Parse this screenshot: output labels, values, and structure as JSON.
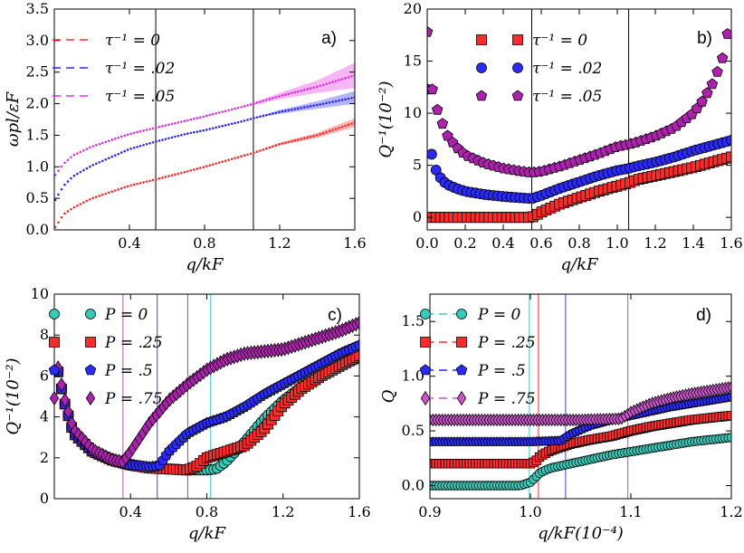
{
  "chart_data": [
    {
      "panel": "a)",
      "type": "line",
      "xlabel": "q/kF",
      "ylabel": "ωpl/εF",
      "xlim": [
        0.0,
        1.6
      ],
      "ylim": [
        0.0,
        3.5
      ],
      "xticks": [
        0.4,
        0.8,
        1.2,
        1.6
      ],
      "xtick_labels": [
        "0.4",
        "0.8",
        "1.2",
        "1.6"
      ],
      "yticks": [
        0.0,
        0.5,
        1.0,
        1.5,
        2.0,
        2.5,
        3.0,
        3.5
      ],
      "ytick_labels": [
        "0.0",
        "0.5",
        "1.0",
        "1.5",
        "2.0",
        "2.5",
        "3.0",
        "3.5"
      ],
      "vlines": [
        0.54,
        1.06
      ],
      "legend_position": "top-left",
      "series": [
        {
          "name": "τ⁻¹ = 0",
          "color": "#ff2a2a",
          "x": [
            0.0,
            0.05,
            0.1,
            0.2,
            0.3,
            0.4,
            0.54,
            0.7,
            0.8,
            1.0,
            1.06,
            1.2,
            1.4,
            1.6
          ],
          "y": [
            0.02,
            0.25,
            0.35,
            0.5,
            0.6,
            0.7,
            0.8,
            0.92,
            1.0,
            1.17,
            1.22,
            1.36,
            1.5,
            1.7
          ],
          "band_halfwidth": [
            0,
            0,
            0,
            0,
            0,
            0,
            0,
            0,
            0,
            0,
            0,
            0.02,
            0.04,
            0.07
          ]
        },
        {
          "name": "τ⁻¹ = .02",
          "color": "#2a2aff",
          "x": [
            0.0,
            0.05,
            0.1,
            0.2,
            0.3,
            0.4,
            0.54,
            0.7,
            0.8,
            1.0,
            1.06,
            1.2,
            1.4,
            1.6
          ],
          "y": [
            0.45,
            0.7,
            0.85,
            1.02,
            1.15,
            1.28,
            1.4,
            1.52,
            1.58,
            1.72,
            1.77,
            1.87,
            1.98,
            2.1
          ],
          "band_halfwidth": [
            0,
            0,
            0,
            0,
            0,
            0,
            0,
            0,
            0,
            0,
            0,
            0.03,
            0.06,
            0.1
          ]
        },
        {
          "name": "τ⁻¹ = .05",
          "color": "#e030e0",
          "x": [
            0.0,
            0.05,
            0.1,
            0.2,
            0.3,
            0.4,
            0.54,
            0.7,
            0.8,
            1.0,
            1.06,
            1.2,
            1.4,
            1.6
          ],
          "y": [
            0.85,
            1.05,
            1.18,
            1.32,
            1.42,
            1.52,
            1.62,
            1.73,
            1.8,
            1.95,
            2.0,
            2.12,
            2.27,
            2.45
          ],
          "band_halfwidth": [
            0,
            0,
            0,
            0,
            0,
            0,
            0,
            0,
            0,
            0,
            0.02,
            0.05,
            0.1,
            0.2
          ]
        }
      ]
    },
    {
      "panel": "b)",
      "type": "scatter",
      "xlabel": "q/kF",
      "ylabel": "Q⁻¹(10⁻²)",
      "xlim": [
        0.0,
        1.6
      ],
      "ylim": [
        -1.2,
        20.0
      ],
      "xticks": [
        0.0,
        0.2,
        0.4,
        0.6,
        0.8,
        1.0,
        1.2,
        1.4,
        1.6
      ],
      "xtick_labels": [
        "0.0",
        "0.2",
        "0.4",
        "0.6",
        "0.8",
        "1.0",
        "1.2",
        "1.4",
        "1.6"
      ],
      "yticks": [
        0,
        5,
        10,
        15,
        20
      ],
      "ytick_labels": [
        "0",
        "5",
        "10",
        "15",
        "20"
      ],
      "vlines": [
        0.55,
        1.06
      ],
      "legend_position": "top-right",
      "series": [
        {
          "name": "τ⁻¹ = 0",
          "marker": "square",
          "color": "#ff2a2a",
          "x": [
            0.0,
            0.2,
            0.4,
            0.55,
            0.6,
            0.7,
            0.8,
            0.9,
            1.0,
            1.06,
            1.1,
            1.2,
            1.3,
            1.4,
            1.5,
            1.6
          ],
          "y": [
            0.0,
            0.0,
            0.0,
            0.0,
            0.5,
            1.3,
            1.9,
            2.5,
            3.0,
            3.3,
            3.6,
            4.0,
            4.4,
            4.8,
            5.3,
            5.8
          ]
        },
        {
          "name": "τ⁻¹ = .02",
          "marker": "circle",
          "color": "#2a2aff",
          "x": [
            0.0,
            0.02,
            0.04,
            0.06,
            0.1,
            0.15,
            0.2,
            0.3,
            0.4,
            0.55,
            0.6,
            0.7,
            0.8,
            0.9,
            1.0,
            1.06,
            1.1,
            1.2,
            1.3,
            1.4,
            1.5,
            1.6
          ],
          "y": [
            12.3,
            6.3,
            4.8,
            4.0,
            3.2,
            2.8,
            2.5,
            2.2,
            2.0,
            1.8,
            2.1,
            2.8,
            3.4,
            4.0,
            4.5,
            4.7,
            4.9,
            5.3,
            5.8,
            6.4,
            6.9,
            7.4
          ]
        },
        {
          "name": "τ⁻¹ = .05",
          "marker": "pentagon",
          "color": "#b020b0",
          "x": [
            0.0,
            0.02,
            0.05,
            0.1,
            0.15,
            0.2,
            0.3,
            0.4,
            0.5,
            0.55,
            0.6,
            0.7,
            0.8,
            0.9,
            1.0,
            1.06,
            1.1,
            1.2,
            1.3,
            1.4,
            1.45,
            1.5,
            1.55,
            1.58
          ],
          "y": [
            17.8,
            12.8,
            10.5,
            8.0,
            6.8,
            6.0,
            5.2,
            4.7,
            4.4,
            4.3,
            4.4,
            4.9,
            5.5,
            6.1,
            6.8,
            7.0,
            7.2,
            7.8,
            8.6,
            10.0,
            11.2,
            12.8,
            15.0,
            17.6
          ]
        }
      ]
    },
    {
      "panel": "c)",
      "type": "scatter",
      "xlabel": "q/kF",
      "ylabel": "Q⁻¹(10⁻²)",
      "xlim": [
        0.0,
        1.6
      ],
      "ylim": [
        0.0,
        10.0
      ],
      "xticks": [
        0.4,
        0.8,
        1.2,
        1.6
      ],
      "xtick_labels": [
        "0.4",
        "0.8",
        "1.2",
        "1.6"
      ],
      "yticks": [
        0,
        2,
        4,
        6,
        8,
        10
      ],
      "ytick_labels": [
        "0",
        "2",
        "4",
        "6",
        "8",
        "10"
      ],
      "vlines": [
        {
          "x": 0.36,
          "color": "#cc44cc"
        },
        {
          "x": 0.54,
          "color": "#4444dd"
        },
        {
          "x": 0.7,
          "color": "#ee3333"
        },
        {
          "x": 0.82,
          "color": "#33ccbb"
        }
      ],
      "legend_position": "top-left",
      "series": [
        {
          "name": "P = 0",
          "marker": "circle",
          "color": "#33ccbb",
          "x": [
            0.02,
            0.05,
            0.1,
            0.2,
            0.3,
            0.4,
            0.5,
            0.6,
            0.7,
            0.8,
            0.85,
            0.9,
            1.0,
            1.1,
            1.2,
            1.3,
            1.4,
            1.5,
            1.6
          ],
          "y": [
            6.2,
            4.8,
            3.2,
            2.3,
            1.9,
            1.65,
            1.5,
            1.45,
            1.4,
            1.4,
            1.45,
            1.8,
            2.8,
            3.9,
            4.8,
            5.5,
            6.0,
            6.5,
            6.9
          ]
        },
        {
          "name": "P = .25",
          "marker": "square",
          "color": "#ff2a2a",
          "x": [
            0.02,
            0.05,
            0.1,
            0.2,
            0.3,
            0.4,
            0.5,
            0.6,
            0.7,
            0.75,
            0.8,
            0.9,
            1.0,
            1.1,
            1.2,
            1.3,
            1.4,
            1.5,
            1.6
          ],
          "y": [
            6.2,
            4.8,
            3.2,
            2.3,
            1.9,
            1.65,
            1.5,
            1.45,
            1.4,
            1.6,
            2.0,
            2.3,
            2.6,
            3.4,
            4.6,
            5.4,
            6.0,
            6.5,
            7.0
          ]
        },
        {
          "name": "P = .5",
          "marker": "pentagon",
          "color": "#2a2aff",
          "x": [
            0.02,
            0.05,
            0.1,
            0.2,
            0.3,
            0.4,
            0.5,
            0.55,
            0.6,
            0.7,
            0.8,
            0.9,
            1.0,
            1.1,
            1.2,
            1.3,
            1.4,
            1.5,
            1.6
          ],
          "y": [
            6.2,
            4.8,
            3.2,
            2.3,
            1.9,
            1.65,
            1.55,
            1.6,
            2.3,
            3.2,
            3.7,
            4.0,
            4.5,
            5.1,
            5.6,
            6.1,
            6.6,
            7.1,
            7.5
          ]
        },
        {
          "name": "P = .75",
          "marker": "diamond",
          "color": "#b020b0",
          "x": [
            0.02,
            0.05,
            0.1,
            0.2,
            0.3,
            0.36,
            0.4,
            0.5,
            0.6,
            0.7,
            0.8,
            0.9,
            1.0,
            1.1,
            1.2,
            1.3,
            1.4,
            1.5,
            1.6
          ],
          "y": [
            6.4,
            5.0,
            3.4,
            2.4,
            1.9,
            1.8,
            2.3,
            3.7,
            4.8,
            5.6,
            6.3,
            6.8,
            7.1,
            7.2,
            7.3,
            7.6,
            7.9,
            8.2,
            8.6
          ]
        }
      ]
    },
    {
      "panel": "d)",
      "type": "line",
      "xlabel": "q/kF(10⁻⁴)",
      "ylabel": "Q",
      "xlim": [
        0.9,
        1.2
      ],
      "ylim": [
        -0.12,
        1.75
      ],
      "xticks": [
        0.9,
        1.0,
        1.1,
        1.2
      ],
      "xtick_labels": [
        "0.9",
        "1.0",
        "1.1",
        "1.2"
      ],
      "yticks": [
        0.0,
        0.5,
        1.0,
        1.5
      ],
      "ytick_labels": [
        "0.0",
        "0.5",
        "1.0",
        "1.5"
      ],
      "vlines": [
        {
          "x": 0.999,
          "color": "#33ccbb"
        },
        {
          "x": 1.008,
          "color": "#ee3333"
        },
        {
          "x": 1.035,
          "color": "#4444dd"
        },
        {
          "x": 1.097,
          "color": "#cc44cc"
        }
      ],
      "legend_position": "top-left",
      "series": [
        {
          "name": "P = 0",
          "marker": "circle",
          "color": "#33ccbb",
          "x": [
            0.9,
            0.95,
            0.99,
            1.0,
            1.01,
            1.02,
            1.04,
            1.06,
            1.08,
            1.1,
            1.12,
            1.14,
            1.16,
            1.18,
            1.2
          ],
          "y": [
            0.0,
            0.0,
            0.0,
            0.03,
            0.12,
            0.16,
            0.2,
            0.24,
            0.28,
            0.31,
            0.34,
            0.37,
            0.4,
            0.42,
            0.44
          ]
        },
        {
          "name": "P = .25",
          "marker": "square",
          "color": "#ff2a2a",
          "x": [
            0.9,
            0.95,
            1.0,
            1.005,
            1.01,
            1.02,
            1.04,
            1.06,
            1.08,
            1.1,
            1.12,
            1.14,
            1.16,
            1.18,
            1.2
          ],
          "y": [
            0.2,
            0.2,
            0.2,
            0.22,
            0.27,
            0.32,
            0.38,
            0.42,
            0.45,
            0.5,
            0.54,
            0.57,
            0.6,
            0.62,
            0.64
          ]
        },
        {
          "name": "P = .5",
          "marker": "pentagon",
          "color": "#2a2aff",
          "x": [
            0.9,
            0.95,
            1.0,
            1.03,
            1.04,
            1.06,
            1.08,
            1.1,
            1.12,
            1.14,
            1.16,
            1.18,
            1.2
          ],
          "y": [
            0.4,
            0.4,
            0.4,
            0.41,
            0.47,
            0.55,
            0.6,
            0.64,
            0.68,
            0.72,
            0.75,
            0.78,
            0.81
          ]
        },
        {
          "name": "P = .75",
          "marker": "diamond",
          "color": "#cc55cc",
          "x": [
            0.9,
            0.95,
            1.0,
            1.05,
            1.09,
            1.1,
            1.12,
            1.14,
            1.16,
            1.18,
            1.2
          ],
          "y": [
            0.6,
            0.6,
            0.6,
            0.6,
            0.61,
            0.67,
            0.75,
            0.8,
            0.84,
            0.87,
            0.9
          ]
        }
      ]
    }
  ],
  "legend_labels": {
    "a": [
      "τ⁻¹ = 0",
      "τ⁻¹ = .02",
      "τ⁻¹ = .05"
    ],
    "b": [
      "τ⁻¹ = 0",
      "τ⁻¹ = .02",
      "τ⁻¹ = .05"
    ],
    "c": [
      "P = 0",
      "P = .25",
      "P = .5",
      "P = .75"
    ],
    "d": [
      "P = 0",
      "P = .25",
      "P = .5",
      "P = .75"
    ]
  }
}
